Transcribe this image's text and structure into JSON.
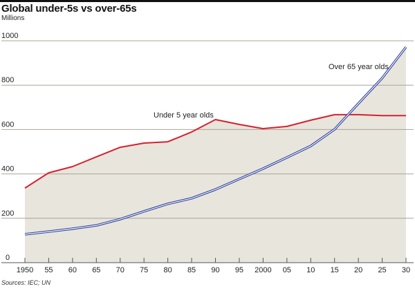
{
  "header": {
    "title": "Global under-5s vs over-65s",
    "subtitle": "Millions"
  },
  "footer": {
    "source": "Sources: IEC; UN"
  },
  "chart_data": {
    "type": "line",
    "title": "Global under-5s vs over-65s",
    "ylabel": "Millions",
    "xlabel": "",
    "x": [
      1950,
      1955,
      1960,
      1965,
      1970,
      1975,
      1980,
      1985,
      1990,
      1995,
      2000,
      2005,
      2010,
      2015,
      2020,
      2025,
      2030
    ],
    "x_tick_labels": [
      "1950",
      "55",
      "60",
      "65",
      "70",
      "75",
      "80",
      "85",
      "90",
      "95",
      "2000",
      "05",
      "10",
      "15",
      "20",
      "25",
      "30"
    ],
    "y_ticks": [
      0,
      200,
      400,
      600,
      800,
      1000
    ],
    "y_tick_labels": [
      "0",
      "200",
      "400",
      "600",
      "800",
      "1000"
    ],
    "ylim": [
      0,
      1000
    ],
    "grid": true,
    "fill_under": "max of series",
    "series": [
      {
        "name": "Under 5 year olds",
        "color": "#d7202f",
        "style": "solid",
        "values": [
          336,
          405,
          433,
          477,
          520,
          539,
          545,
          589,
          645,
          623,
          604,
          614,
          642,
          667,
          667,
          663,
          663
        ]
      },
      {
        "name": "Over 65 year olds",
        "color": "#2b3f9e",
        "style": "double",
        "values": [
          128,
          140,
          153,
          168,
          196,
          231,
          265,
          290,
          330,
          377,
          424,
          474,
          526,
          601,
          717,
          832,
          972
        ]
      }
    ],
    "annotations": [
      {
        "text": "Under 5 year olds",
        "series": "Under 5 year olds",
        "near_x": 1985
      },
      {
        "text": "Over 65 year olds",
        "series": "Over 65 year olds",
        "near_x": 2020
      }
    ],
    "colors": {
      "fill": "#e8e5dc",
      "grid": "#aaa49a",
      "axis": "#555"
    }
  }
}
